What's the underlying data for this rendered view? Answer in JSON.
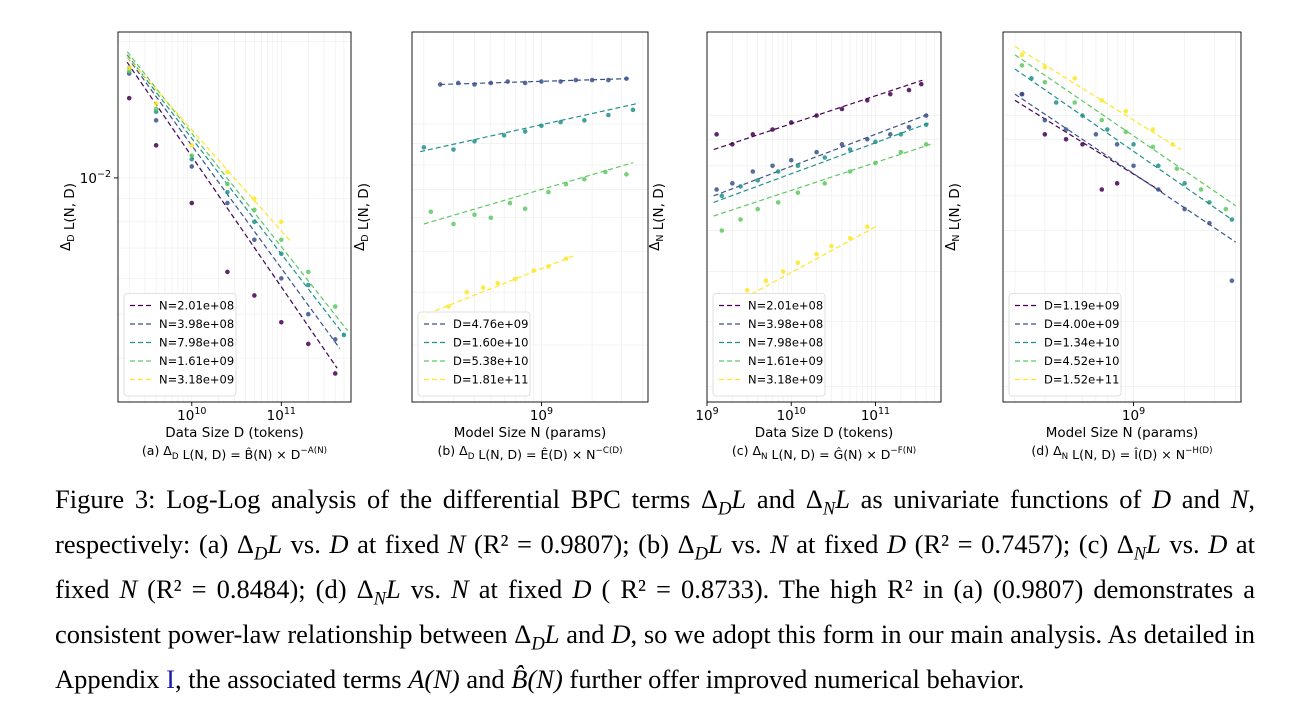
{
  "figure": {
    "panels": [
      {
        "id": "a",
        "xlabel": "Data Size D (tokens)",
        "ylabel": "Δ_D L(N, D)",
        "subcaption": "(a) Δ_D L(N, D) = B̂(N) × D^−A(N)",
        "yticks": [
          "10^−2"
        ],
        "xticks": [
          "10^10",
          "10^11"
        ]
      },
      {
        "id": "b",
        "xlabel": "Model Size N (params)",
        "ylabel": "Δ_D L(N, D)",
        "subcaption": "(b) Δ_D L(N, D) = Ê(D) × N^−C(D)",
        "yticks": [],
        "xticks": [
          "10^9"
        ]
      },
      {
        "id": "c",
        "xlabel": "Data Size D (tokens)",
        "ylabel": "Δ_N L(N, D)",
        "subcaption": "(c) Δ_N L(N, D) = Ĝ(N) × D^−F(N)",
        "yticks": [],
        "xticks": [
          "10^9",
          "10^10",
          "10^11"
        ]
      },
      {
        "id": "d",
        "xlabel": "Model Size N (params)",
        "ylabel": "Δ_N L(N, D)",
        "subcaption": "(d) Δ_N L(N, D) = Î(D) × N^−H(D)",
        "yticks": [],
        "xticks": [
          "10^9"
        ]
      }
    ]
  },
  "chart_data": [
    {
      "type": "scatter",
      "panel": "a",
      "xlabel": "Data Size D (tokens)",
      "ylabel": "Δ_D L(N, D)",
      "xscale": "log",
      "yscale": "log",
      "xlim": [
        1500000000.0,
        600000000000.0
      ],
      "ylim": [
        0.0032,
        0.021
      ],
      "legend_loc": "lower-left",
      "grid": true,
      "series": [
        {
          "name": "N=2.01e+08",
          "color": "#440154",
          "x": [
            2000000000.0,
            4000000000.0,
            10000000000.0,
            25000000000.0,
            50000000000.0,
            100000000000.0,
            200000000000.0,
            400000000000.0
          ],
          "y": [
            0.015,
            0.0118,
            0.0088,
            0.0062,
            0.0055,
            0.0048,
            0.0043,
            0.0037
          ],
          "fit": {
            "x": [
              1900000000.0,
              420000000000.0
            ],
            "y": [
              0.018,
              0.0038
            ]
          }
        },
        {
          "name": "N=3.98e+08",
          "color": "#3b528b",
          "x": [
            2000000000.0,
            4000000000.0,
            10000000000.0,
            25000000000.0,
            50000000000.0,
            100000000000.0,
            200000000000.0,
            400000000000.0
          ],
          "y": [
            0.017,
            0.0134,
            0.0106,
            0.0088,
            0.0073,
            0.006,
            0.005,
            0.0044
          ],
          "fit": {
            "x": [
              1900000000.0,
              450000000000.0
            ],
            "y": [
              0.0185,
              0.0042
            ]
          }
        },
        {
          "name": "N=7.98e+08",
          "color": "#21918c",
          "x": [
            2000000000.0,
            4000000000.0,
            10000000000.0,
            25000000000.0,
            50000000000.0,
            100000000000.0,
            200000000000.0,
            500000000000.0
          ],
          "y": [
            0.0175,
            0.014,
            0.011,
            0.0093,
            0.008,
            0.0068,
            0.0058,
            0.0045
          ],
          "fit": {
            "x": [
              1900000000.0,
              500000000000.0
            ],
            "y": [
              0.0187,
              0.0045
            ]
          }
        },
        {
          "name": "N=1.61e+09",
          "color": "#5ec962",
          "x": [
            2000000000.0,
            4000000000.0,
            10000000000.0,
            25000000000.0,
            50000000000.0,
            100000000000.0,
            200000000000.0,
            400000000000.0
          ],
          "y": [
            0.0172,
            0.0142,
            0.0112,
            0.0097,
            0.0085,
            0.0073,
            0.0062,
            0.0052
          ],
          "fit": {
            "x": [
              1900000000.0,
              550000000000.0
            ],
            "y": [
              0.019,
              0.0046
            ]
          }
        },
        {
          "name": "N=3.18e+09",
          "color": "#fde725",
          "x": [
            2000000000.0,
            4000000000.0,
            10000000000.0,
            25000000000.0,
            50000000000.0,
            100000000000.0
          ],
          "y": [
            0.0175,
            0.0146,
            0.0118,
            0.0103,
            0.009,
            0.008
          ],
          "fit": {
            "x": [
              1900000000.0,
              130000000000.0
            ],
            "y": [
              0.0185,
              0.0072
            ]
          }
        }
      ]
    },
    {
      "type": "scatter",
      "panel": "b",
      "xlabel": "Model Size N (params)",
      "ylabel": "Δ_D L(N, D)",
      "xscale": "log",
      "yscale": "log",
      "xlim": [
        170000000.0,
        4300000000.0
      ],
      "ylim": [
        0.0022,
        0.0165
      ],
      "legend_loc": "lower-left",
      "grid": true,
      "series": [
        {
          "name": "D=4.76e+09",
          "color": "#3b528b",
          "x": [
            250000000.0,
            320000000.0,
            400000000.0,
            500000000.0,
            630000000.0,
            800000000.0,
            1000000000.0,
            1300000000.0,
            1600000000.0,
            2000000000.0,
            2500000000.0,
            3200000000.0
          ],
          "y": [
            0.0124,
            0.0125,
            0.0124,
            0.0125,
            0.0126,
            0.0125,
            0.0126,
            0.0126,
            0.0127,
            0.0127,
            0.0127,
            0.0128
          ],
          "fit": {
            "x": [
              250000000.0,
              3300000000.0
            ],
            "y": [
              0.0124,
              0.0128
            ]
          }
        },
        {
          "name": "D=1.60e+10",
          "color": "#21918c",
          "x": [
            200000000.0,
            300000000.0,
            400000000.0,
            600000000.0,
            800000000.0,
            1000000000.0,
            1300000000.0,
            1800000000.0,
            2500000000.0,
            3500000000.0
          ],
          "y": [
            0.0088,
            0.0087,
            0.0091,
            0.0094,
            0.0096,
            0.0099,
            0.0101,
            0.0102,
            0.0105,
            0.0108
          ],
          "fit": {
            "x": [
              190000000.0,
              3800000000.0
            ],
            "y": [
              0.0086,
              0.0112
            ]
          }
        },
        {
          "name": "D=5.38e+10",
          "color": "#5ec962",
          "x": [
            220000000.0,
            300000000.0,
            400000000.0,
            500000000.0,
            650000000.0,
            800000000.0,
            1100000000.0,
            1400000000.0,
            1800000000.0,
            2400000000.0,
            3200000000.0
          ],
          "y": [
            0.0062,
            0.0058,
            0.0061,
            0.006,
            0.0065,
            0.0063,
            0.0069,
            0.0072,
            0.0074,
            0.0077,
            0.0076
          ],
          "fit": {
            "x": [
              200000000.0,
              3500000000.0
            ],
            "y": [
              0.0058,
              0.0081
            ]
          }
        },
        {
          "name": "D=1.81e+11",
          "color": "#fde725",
          "x": [
            200000000.0,
            280000000.0,
            360000000.0,
            450000000.0,
            550000000.0,
            700000000.0,
            900000000.0,
            1100000000.0,
            1400000000.0
          ],
          "y": [
            0.0035,
            0.0037,
            0.004,
            0.0041,
            0.0042,
            0.0043,
            0.0045,
            0.0046,
            0.0048
          ],
          "fit": {
            "x": [
              190000000.0,
              1600000000.0
            ],
            "y": [
              0.0035,
              0.0049
            ]
          }
        }
      ]
    },
    {
      "type": "scatter",
      "panel": "c",
      "xlabel": "Data Size D (tokens)",
      "ylabel": "Δ_N L(N, D)",
      "xscale": "log",
      "yscale": "log",
      "xlim": [
        1000000000.0,
        600000000000.0
      ],
      "ylim": [
        0.0028,
        0.0145
      ],
      "legend_loc": "lower-left",
      "grid": true,
      "series": [
        {
          "name": "N=2.01e+08",
          "color": "#440154",
          "x": [
            1300000000.0,
            2000000000.0,
            3500000000.0,
            6000000000.0,
            10000000000.0,
            20000000000.0,
            40000000000.0,
            80000000000.0,
            150000000000.0,
            250000000000.0,
            350000000000.0
          ],
          "y": [
            0.0092,
            0.0088,
            0.0092,
            0.0094,
            0.0097,
            0.01,
            0.0103,
            0.0107,
            0.011,
            0.0112,
            0.0115
          ],
          "fit": {
            "x": [
              1200000000.0,
              360000000000.0
            ],
            "y": [
              0.0086,
              0.0117
            ]
          }
        },
        {
          "name": "N=3.98e+08",
          "color": "#3b528b",
          "x": [
            1300000000.0,
            2000000000.0,
            3500000000.0,
            6000000000.0,
            10000000000.0,
            20000000000.0,
            40000000000.0,
            80000000000.0,
            150000000000.0,
            250000000000.0,
            400000000000.0
          ],
          "y": [
            0.0072,
            0.0074,
            0.0078,
            0.008,
            0.0082,
            0.0085,
            0.0088,
            0.009,
            0.0092,
            0.0095,
            0.01
          ],
          "fit": {
            "x": [
              1200000000.0,
              450000000000.0
            ],
            "y": [
              0.007,
              0.0101
            ]
          }
        },
        {
          "name": "N=7.98e+08",
          "color": "#21918c",
          "x": [
            1500000000.0,
            2500000000.0,
            4000000000.0,
            7000000000.0,
            12000000000.0,
            25000000000.0,
            50000000000.0,
            100000000000.0,
            200000000000.0,
            400000000000.0
          ],
          "y": [
            0.007,
            0.0073,
            0.0075,
            0.0078,
            0.008,
            0.0083,
            0.0086,
            0.0089,
            0.0092,
            0.0096
          ],
          "fit": {
            "x": [
              1200000000.0,
              450000000000.0
            ],
            "y": [
              0.0068,
              0.0097
            ]
          }
        },
        {
          "name": "N=1.61e+09",
          "color": "#5ec962",
          "x": [
            1500000000.0,
            2500000000.0,
            4000000000.0,
            7000000000.0,
            12000000000.0,
            25000000000.0,
            50000000000.0,
            100000000000.0,
            200000000000.0,
            400000000000.0
          ],
          "y": [
            0.006,
            0.0063,
            0.0066,
            0.0068,
            0.0071,
            0.0074,
            0.0078,
            0.0081,
            0.0085,
            0.0088
          ],
          "fit": {
            "x": [
              1200000000.0,
              450000000000.0
            ],
            "y": [
              0.0064,
              0.0088
            ]
          }
        },
        {
          "name": "N=3.18e+09",
          "color": "#fde725",
          "x": [
            2000000000.0,
            3000000000.0,
            5000000000.0,
            8000000000.0,
            12000000000.0,
            20000000000.0,
            30000000000.0,
            50000000000.0,
            80000000000.0
          ],
          "y": [
            0.0044,
            0.0046,
            0.0048,
            0.005,
            0.0052,
            0.0054,
            0.0056,
            0.0058,
            0.0061
          ],
          "fit": {
            "x": [
              1900000000.0,
              100000000000.0
            ],
            "y": [
              0.0043,
              0.0061
            ]
          }
        }
      ]
    },
    {
      "type": "scatter",
      "panel": "d",
      "xlabel": "Model Size N (params)",
      "ylabel": "Δ_N L(N, D)",
      "xscale": "log",
      "yscale": "log",
      "xlim": [
        170000000.0,
        4300000000.0
      ],
      "ylim": [
        0.0028,
        0.0145
      ],
      "legend_loc": "lower-left",
      "grid": true,
      "series": [
        {
          "name": "D=1.19e+09",
          "color": "#440154",
          "x": [
            220000000.0,
            300000000.0,
            400000000.0,
            500000000.0,
            650000000.0,
            800000000.0
          ],
          "y": [
            0.011,
            0.0092,
            0.009,
            0.0088,
            0.0072,
            0.0074
          ],
          "fit": {
            "x": [
              200000000.0,
              1500000000.0
            ],
            "y": [
              0.0107,
              0.0071
            ]
          }
        },
        {
          "name": "D=4.00e+09",
          "color": "#3b528b",
          "x": [
            220000000.0,
            300000000.0,
            400000000.0,
            600000000.0,
            800000000.0,
            1000000000.0,
            1400000000.0,
            2000000000.0,
            2800000000.0,
            3800000000.0
          ],
          "y": [
            0.011,
            0.0098,
            0.0094,
            0.0092,
            0.0088,
            0.008,
            0.0072,
            0.0066,
            0.0062,
            0.0048
          ],
          "fit": {
            "x": [
              200000000.0,
              4000000000.0
            ],
            "y": [
              0.011,
              0.0057
            ]
          }
        },
        {
          "name": "D=1.34e+10",
          "color": "#21918c",
          "x": [
            250000000.0,
            350000000.0,
            500000000.0,
            700000000.0,
            1000000000.0,
            1400000000.0,
            2000000000.0,
            2800000000.0,
            3800000000.0
          ],
          "y": [
            0.0118,
            0.0106,
            0.01,
            0.0094,
            0.0088,
            0.008,
            0.0074,
            0.0068,
            0.0063
          ],
          "fit": {
            "x": [
              200000000.0,
              3800000000.0
            ],
            "y": [
              0.0123,
              0.0063
            ]
          }
        },
        {
          "name": "D=4.52e+10",
          "color": "#5ec962",
          "x": [
            220000000.0,
            300000000.0,
            450000000.0,
            650000000.0,
            900000000.0,
            1300000000.0,
            1800000000.0,
            2500000000.0,
            3500000000.0
          ],
          "y": [
            0.0125,
            0.0116,
            0.0106,
            0.0098,
            0.0093,
            0.0087,
            0.0079,
            0.0072,
            0.0066
          ],
          "fit": {
            "x": [
              200000000.0,
              4000000000.0
            ],
            "y": [
              0.0131,
              0.0067
            ]
          }
        },
        {
          "name": "D=1.52e+11",
          "color": "#fde725",
          "x": [
            220000000.0,
            300000000.0,
            450000000.0,
            650000000.0,
            900000000.0,
            1300000000.0,
            1700000000.0
          ],
          "y": [
            0.0131,
            0.0124,
            0.0118,
            0.0107,
            0.0102,
            0.0094,
            0.0088
          ],
          "fit": {
            "x": [
              200000000.0,
              1900000000.0
            ],
            "y": [
              0.0136,
              0.0086
            ]
          }
        }
      ]
    }
  ],
  "caption": {
    "label": "Figure 3:",
    "parts": [
      "Log-Log analysis of the differential BPC terms ",
      "Δ",
      "D",
      "L and ",
      "Δ",
      "N",
      "L as univariate functions of ",
      "D",
      " and ",
      "N",
      ", respectively: (a) ",
      "Δ",
      "D",
      "L vs. ",
      "D",
      " at fixed ",
      "N",
      " (R² = 0.9807); (b) ",
      "Δ",
      "D",
      "L vs. ",
      "N",
      " at fixed ",
      "D",
      " (R² = 0.7457); (c) ",
      "Δ",
      "N",
      "L vs. ",
      "D",
      " at fixed ",
      "N",
      " (R² = 0.8484); (d) ",
      "Δ",
      "N",
      "L vs. ",
      "N",
      " at fixed ",
      "D",
      " ( R² = 0.8733). The high R² in (a) (0.9807) demonstrates a consistent power-law relationship between ",
      "Δ",
      "D",
      "L and ",
      "D",
      ", so we adopt this form in our main analysis. As detailed in Appendix ",
      "I",
      ", the associated terms ",
      "A(N)",
      " and ",
      "B̂(N)",
      " further offer improved numerical behavior."
    ]
  }
}
